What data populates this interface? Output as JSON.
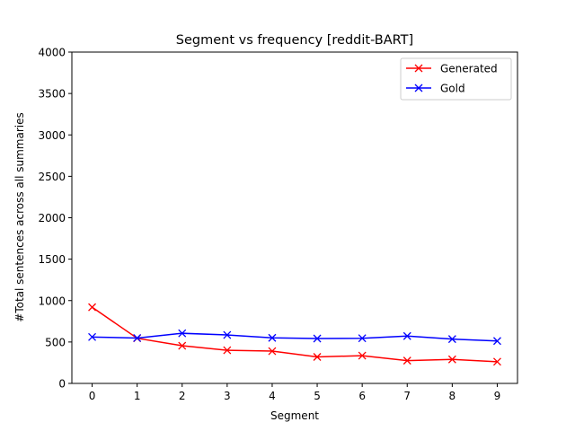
{
  "chart_data": {
    "type": "line",
    "title": "Segment vs frequency [reddit-BART]",
    "xlabel": "Segment",
    "ylabel": "#Total sentences across all summaries",
    "x": [
      0,
      1,
      2,
      3,
      4,
      5,
      6,
      7,
      8,
      9
    ],
    "xlim": [
      -0.45,
      9.45
    ],
    "ylim": [
      0,
      4000
    ],
    "xticks": [
      0,
      1,
      2,
      3,
      4,
      5,
      6,
      7,
      8,
      9
    ],
    "yticks": [
      0,
      500,
      1000,
      1500,
      2000,
      2500,
      3000,
      3500,
      4000
    ],
    "grid": false,
    "legend_position": "top-right",
    "series": [
      {
        "name": "Generated",
        "color": "#ff0000",
        "marker": "x",
        "values": [
          920,
          545,
          455,
          400,
          390,
          320,
          335,
          275,
          290,
          262
        ]
      },
      {
        "name": "Gold",
        "color": "#0000ff",
        "marker": "x",
        "values": [
          560,
          548,
          605,
          585,
          550,
          542,
          545,
          572,
          535,
          512
        ]
      }
    ]
  }
}
